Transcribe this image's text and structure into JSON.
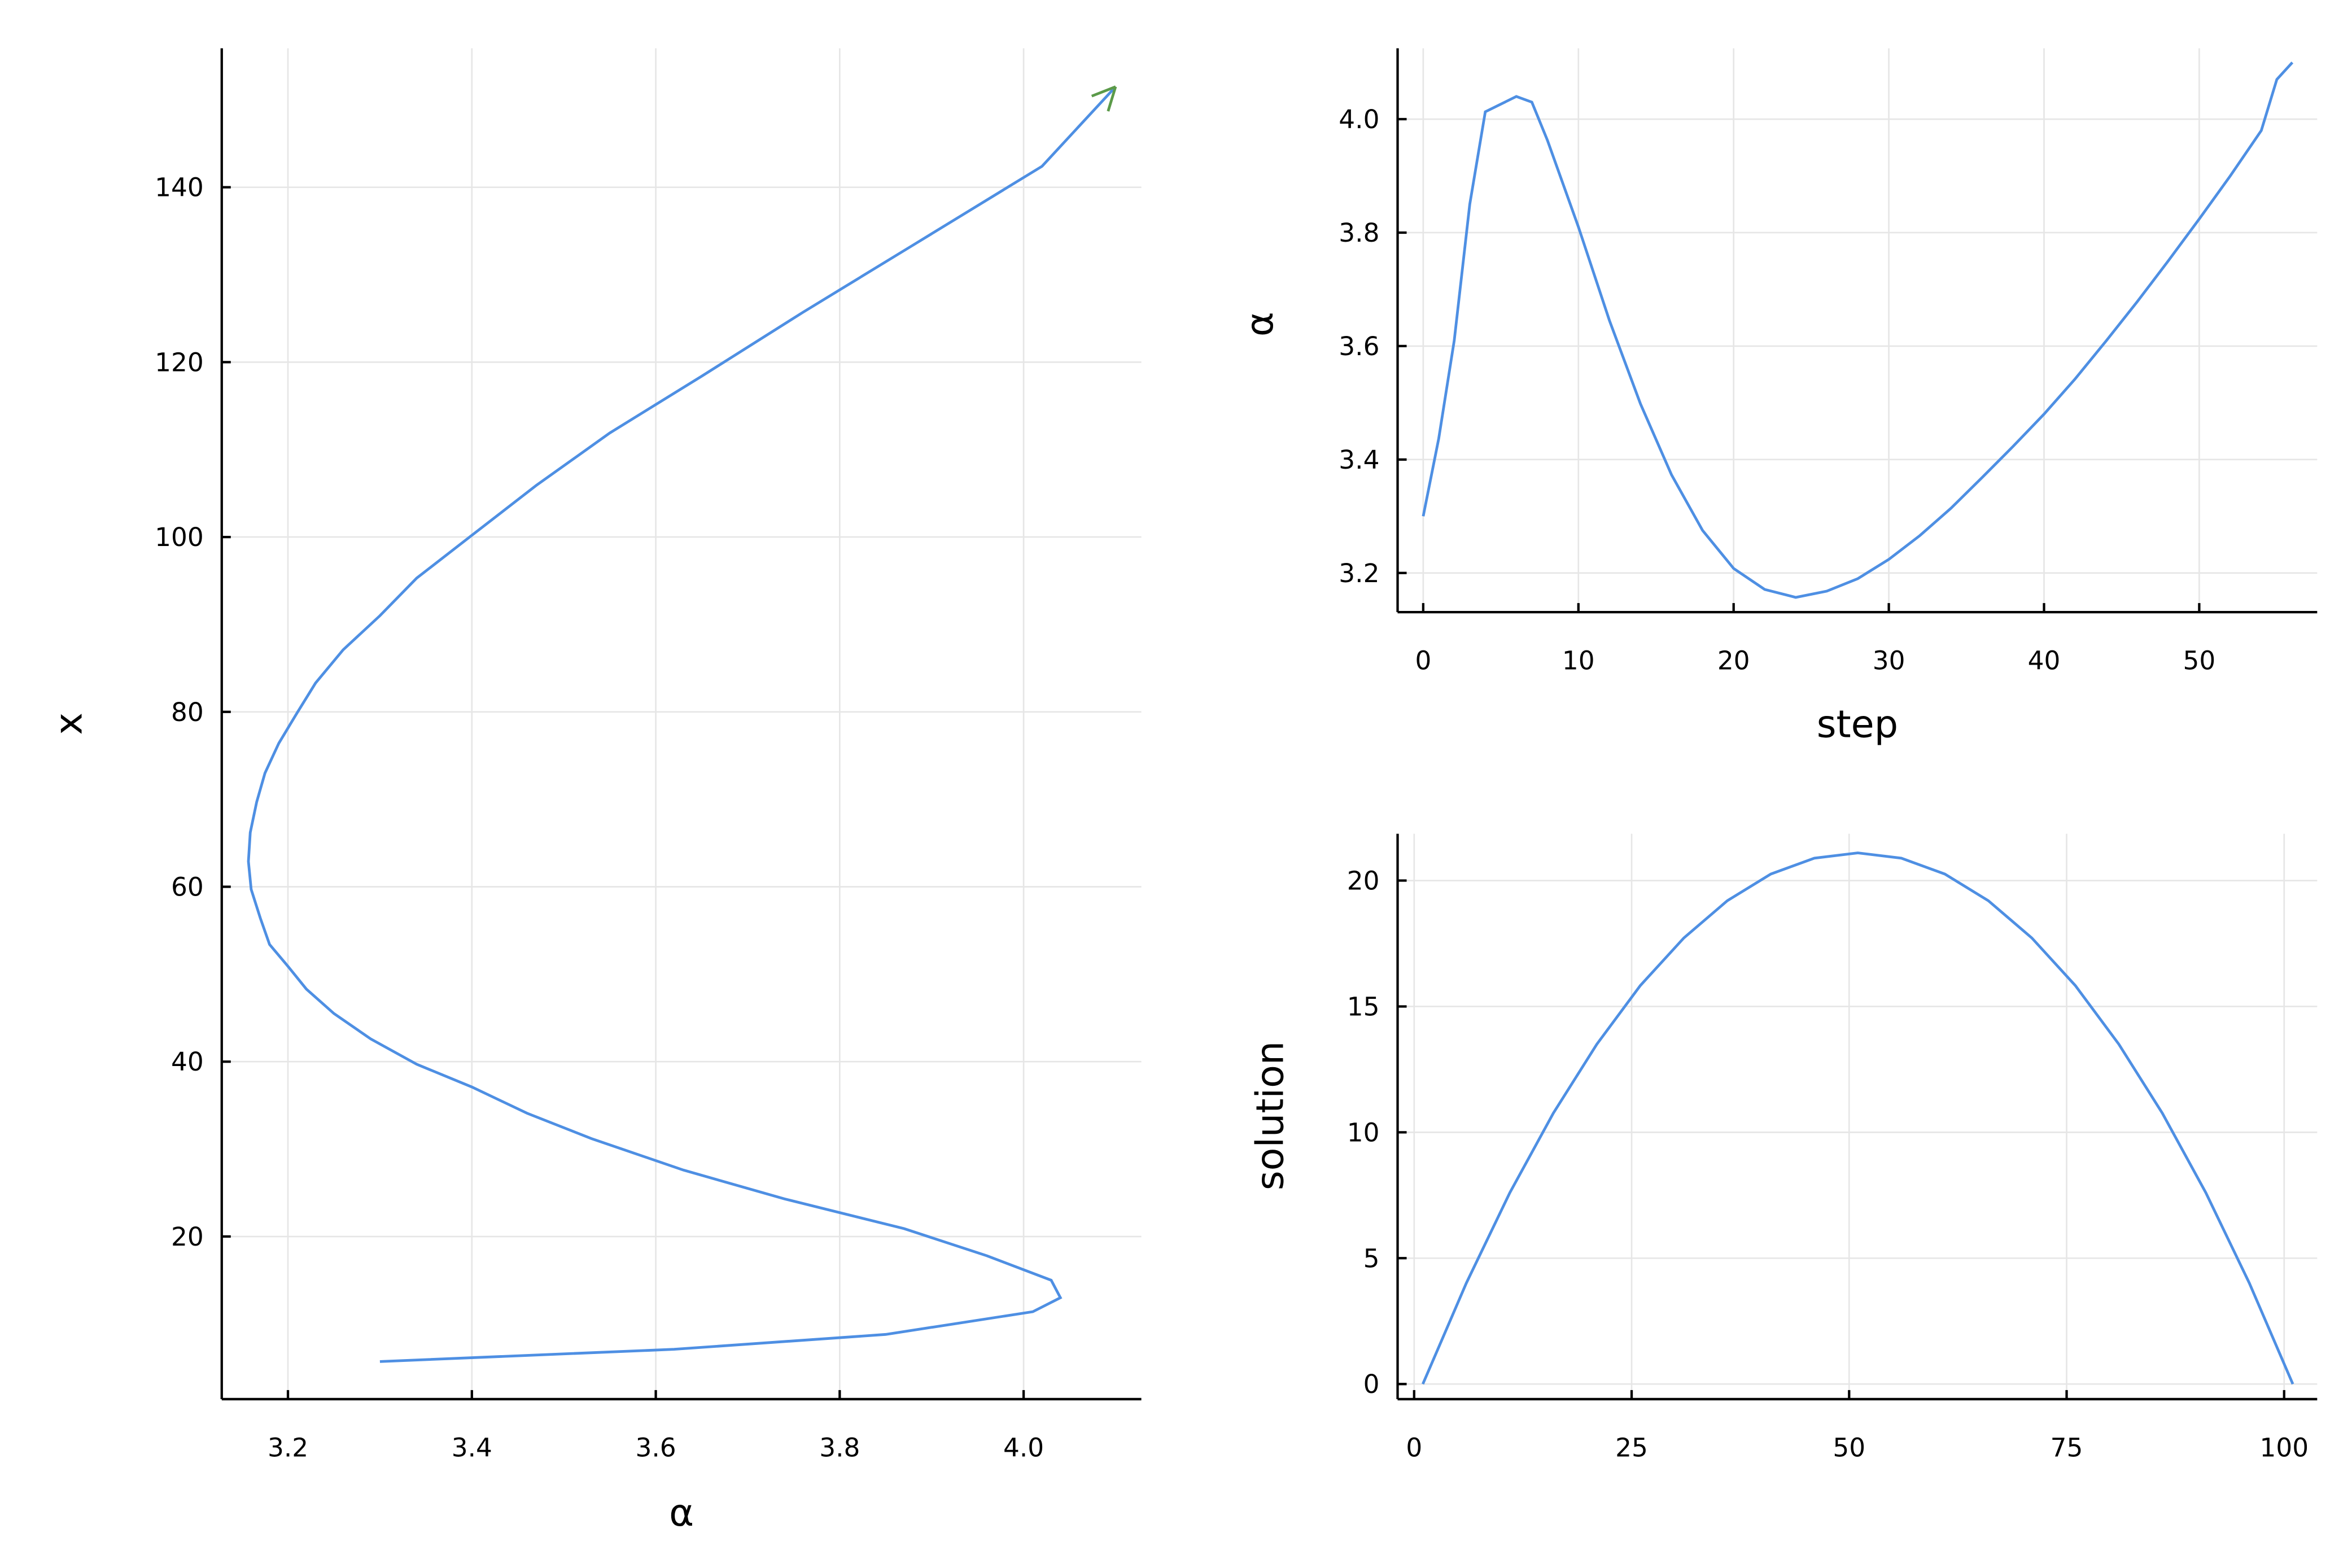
{
  "chart_data": [
    {
      "type": "line",
      "x_label": "α",
      "y_label": "x",
      "color": "#4e8fe3",
      "arrow_color": "#5b9a49",
      "grid": true,
      "x": [
        3.3,
        3.62,
        3.85,
        4.01,
        4.04,
        4.03,
        3.96,
        3.87,
        3.74,
        3.63,
        3.53,
        3.46,
        3.4,
        3.34,
        3.29,
        3.25,
        3.22,
        3.2,
        3.18,
        3.17,
        3.16,
        3.157,
        3.159,
        3.166,
        3.175,
        3.19,
        3.21,
        3.23,
        3.26,
        3.3,
        3.34,
        3.4,
        3.47,
        3.55,
        3.65,
        3.76,
        3.88,
        4.02,
        4.1
      ],
      "values": [
        5.7,
        7.1,
        8.8,
        11.4,
        13.0,
        15.0,
        17.8,
        20.9,
        24.3,
        27.6,
        31.2,
        34.1,
        37.1,
        39.7,
        42.6,
        45.5,
        48.3,
        50.9,
        53.4,
        56.4,
        59.7,
        62.9,
        66.2,
        69.7,
        73.0,
        76.4,
        79.9,
        83.3,
        87.1,
        91.0,
        95.3,
        100.2,
        105.9,
        111.9,
        118.4,
        125.7,
        133.4,
        142.4,
        151.5
      ],
      "xlim": [
        3.128,
        4.128
      ],
      "xticks": [
        3.2,
        3.4,
        3.6,
        3.8,
        {
          "value": 4,
          "label": "4.0"
        }
      ],
      "ylim": [
        1.4,
        155.9
      ],
      "yticks": [
        20,
        40,
        60,
        80,
        100,
        120,
        140
      ]
    },
    {
      "type": "line",
      "x_label": "step",
      "y_label": "α",
      "color": "#4e8fe3",
      "grid": true,
      "x": [
        0,
        1,
        2,
        3,
        4,
        6,
        7,
        8,
        10,
        12,
        14,
        16,
        18,
        20,
        22,
        24,
        26,
        28,
        30,
        32,
        34,
        36,
        38,
        40,
        42,
        44,
        46,
        48,
        50,
        52,
        54,
        55,
        56
      ],
      "values": [
        3.3,
        3.437,
        3.61,
        3.85,
        4.013,
        4.04,
        4.03,
        3.963,
        3.81,
        3.645,
        3.498,
        3.373,
        3.275,
        3.208,
        3.171,
        3.157,
        3.168,
        3.19,
        3.224,
        3.266,
        3.314,
        3.368,
        3.423,
        3.48,
        3.542,
        3.609,
        3.678,
        3.75,
        3.824,
        3.9,
        3.98,
        4.07,
        4.1
      ],
      "xlim": [
        -1.65,
        57.6
      ],
      "xticks": [
        0,
        10,
        20,
        30,
        40,
        50
      ],
      "ylim": [
        3.131,
        4.125
      ],
      "yticks": [
        3.2,
        3.4,
        3.6,
        3.8,
        {
          "value": 4,
          "label": "4.0"
        }
      ]
    },
    {
      "type": "line",
      "y_label": "solution",
      "color": "#4e8fe3",
      "grid": true,
      "x": [
        1,
        6,
        11,
        16,
        21,
        26,
        31,
        36,
        41,
        46,
        51,
        56,
        61,
        66,
        71,
        76,
        81,
        86,
        91,
        96,
        101
      ],
      "values": [
        0,
        4.01,
        7.6,
        10.76,
        13.5,
        15.83,
        17.72,
        19.2,
        20.26,
        20.89,
        21.1,
        20.89,
        20.26,
        19.2,
        17.72,
        15.83,
        13.5,
        10.76,
        7.6,
        4.01,
        0
      ],
      "xlim": [
        -1.9,
        103.8
      ],
      "xticks": [
        0,
        25,
        50,
        75,
        100
      ],
      "ylim": [
        -0.6,
        21.86
      ],
      "yticks": [
        0,
        5,
        10,
        15,
        20
      ]
    }
  ]
}
